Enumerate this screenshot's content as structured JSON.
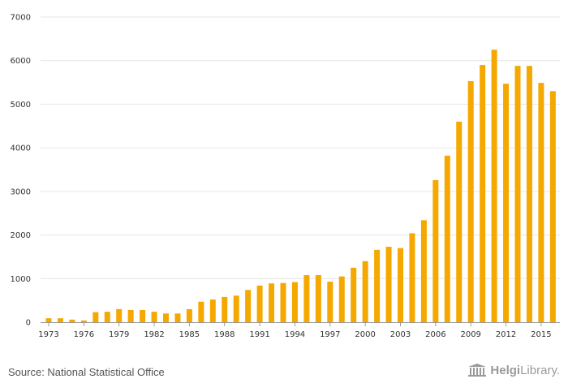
{
  "chart_data": {
    "type": "bar",
    "title": "",
    "xlabel": "",
    "ylabel": "",
    "ylim": [
      0,
      7000
    ],
    "yticks": [
      0,
      1000,
      2000,
      3000,
      4000,
      5000,
      6000,
      7000
    ],
    "grid": true,
    "bar_color": "#f5a800",
    "categories": [
      1973,
      1974,
      1975,
      1976,
      1977,
      1978,
      1979,
      1980,
      1981,
      1982,
      1983,
      1984,
      1985,
      1986,
      1987,
      1988,
      1989,
      1990,
      1991,
      1992,
      1993,
      1994,
      1995,
      1996,
      1997,
      1998,
      1999,
      2000,
      2001,
      2002,
      2003,
      2004,
      2005,
      2006,
      2007,
      2008,
      2009,
      2010,
      2011,
      2012,
      2013,
      2014,
      2015,
      2016
    ],
    "xtick_labels": [
      "1973",
      "1976",
      "1979",
      "1982",
      "1985",
      "1988",
      "1991",
      "1994",
      "1997",
      "2000",
      "2003",
      "2006",
      "2009",
      "2012",
      "2015"
    ],
    "values": [
      90,
      90,
      60,
      40,
      230,
      240,
      300,
      280,
      280,
      240,
      200,
      200,
      300,
      470,
      520,
      580,
      610,
      740,
      840,
      890,
      900,
      920,
      1080,
      1080,
      930,
      1050,
      1250,
      1400,
      1660,
      1730,
      1700,
      2040,
      2340,
      3260,
      3820,
      4600,
      5530,
      5900,
      6250,
      5470,
      5880,
      5880,
      5490,
      5300
    ]
  },
  "footer": {
    "source": "Source: National Statistical Office",
    "brand_bold": "Helgi",
    "brand_rest": "Library."
  },
  "colors": {
    "bar": "#f5a800",
    "grid": "#e6e6e6",
    "axis": "#999999",
    "text": "#555555"
  }
}
